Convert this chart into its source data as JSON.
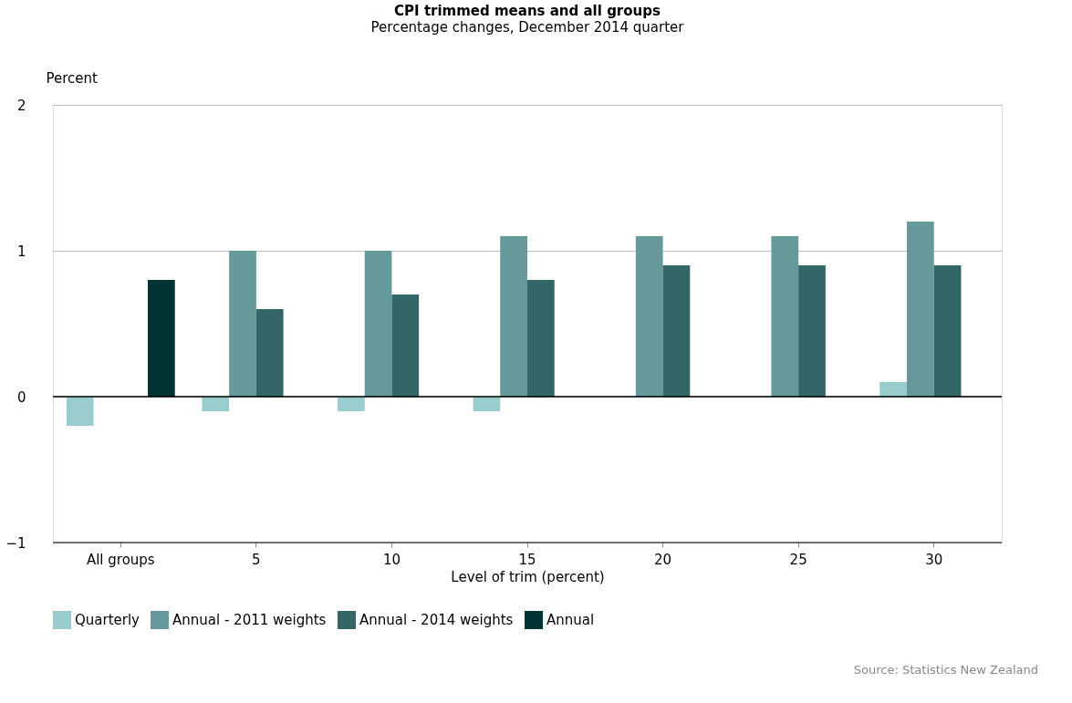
{
  "chart_data": {
    "type": "bar",
    "title": "CPI trimmed means and all groups",
    "subtitle": "Percentage changes, December 2014 quarter",
    "xlabel": "Level of trim (percent)",
    "ylabel": "Percent",
    "categories": [
      "All groups",
      "5",
      "10",
      "15",
      "20",
      "25",
      "30"
    ],
    "series": [
      {
        "name": "Quarterly",
        "color": "#99cccc",
        "values": [
          -0.2,
          -0.1,
          -0.1,
          -0.1,
          0,
          0,
          0.1
        ]
      },
      {
        "name": "Annual - 2011 weights",
        "color": "#669999",
        "values": [
          null,
          1.0,
          1.0,
          1.1,
          1.1,
          1.1,
          1.2
        ]
      },
      {
        "name": "Annual - 2014 weights",
        "color": "#336666",
        "values": [
          null,
          0.6,
          0.7,
          0.8,
          0.9,
          0.9,
          0.9
        ]
      },
      {
        "name": "Annual",
        "color": "#003333",
        "values": [
          0.8,
          null,
          null,
          null,
          null,
          null,
          null
        ]
      }
    ],
    "ylim": [
      -1,
      2
    ],
    "yticks": [
      -1,
      0,
      1,
      2
    ],
    "grid": "y",
    "legend": "bottom",
    "ref_lines": [
      {
        "axis": "y",
        "value": 0,
        "color": "#000000"
      }
    ],
    "annotations": [
      "Source: Statistics New Zealand"
    ]
  }
}
